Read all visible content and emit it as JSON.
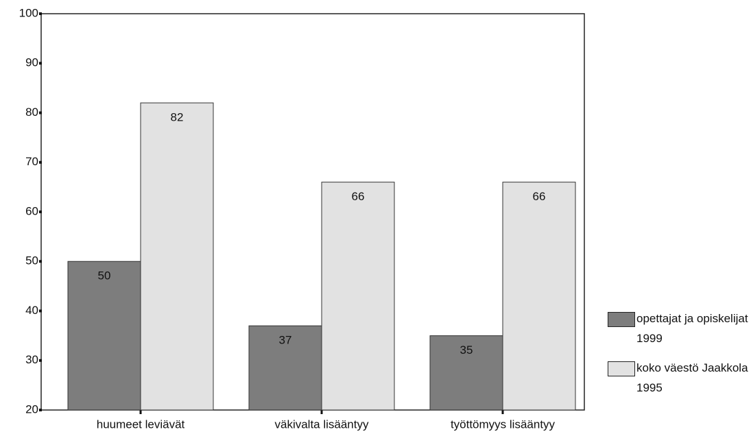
{
  "chart_data": {
    "type": "bar",
    "categories": [
      "huumeet leviävät",
      "väkivalta lisääntyy",
      "työttömyys lisääntyy"
    ],
    "series": [
      {
        "name": "opettajat ja opiskelijat 1999",
        "color": "#7d7d7d",
        "values": [
          50,
          37,
          35
        ]
      },
      {
        "name": "koko väestö Jaakkola 1995",
        "color": "#e2e2e2",
        "values": [
          82,
          66,
          66
        ]
      }
    ],
    "ylim": [
      20,
      100
    ],
    "yticks": [
      20,
      30,
      40,
      50,
      60,
      70,
      80,
      90,
      100
    ],
    "legend": "right"
  }
}
